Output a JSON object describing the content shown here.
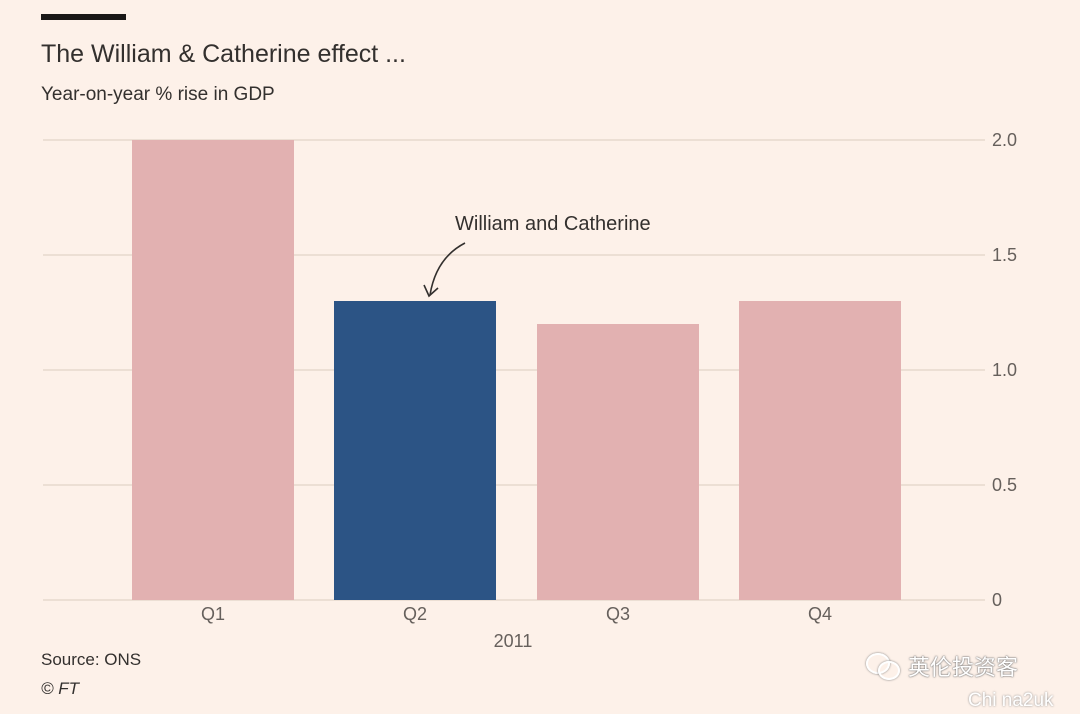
{
  "header": {
    "title": "The William & Catherine effect ...",
    "subtitle": "Year-on-year % rise in GDP"
  },
  "footer": {
    "source": "Source: ONS",
    "copyright": "© FT"
  },
  "watermark": {
    "text": "英伦投资客",
    "subtext": "Chi na2uk"
  },
  "colors": {
    "background": "#fdf1e9",
    "bar": "#e2b1b1",
    "highlight": "#2c5485",
    "gridline": "#e6d9ce",
    "text": "#33302e",
    "axis_text": "#66605c"
  },
  "chart_data": {
    "type": "bar",
    "categories": [
      "Q1",
      "Q2",
      "Q3",
      "Q4"
    ],
    "values": [
      2.0,
      1.3,
      1.2,
      1.3
    ],
    "highlight_index": 1,
    "group_label": "2011",
    "ylim": [
      0,
      2.0
    ],
    "yticks": [
      "0",
      "0.5",
      "1.0",
      "1.5",
      "2.0"
    ],
    "ytick_values": [
      0,
      0.5,
      1.0,
      1.5,
      2.0
    ],
    "y_axis_side": "right",
    "grid": true,
    "annotation": {
      "text": "William and Catherine",
      "target_index": 1
    }
  }
}
